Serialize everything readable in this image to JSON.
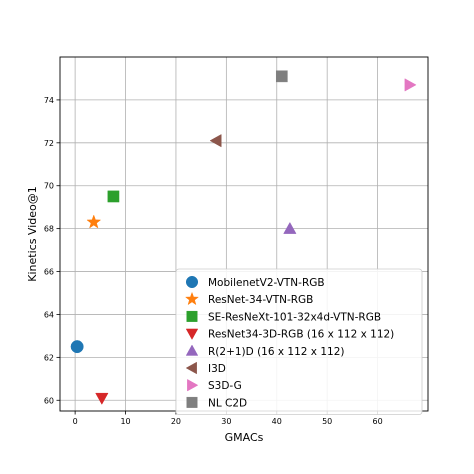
{
  "chart_data": {
    "type": "scatter",
    "xlabel": "GMACs",
    "ylabel": "Kinetics Video@1",
    "xlim": [
      -3,
      70
    ],
    "ylim": [
      59.5,
      76
    ],
    "xticks": [
      0,
      10,
      20,
      30,
      40,
      50,
      60
    ],
    "yticks": [
      60,
      62,
      64,
      66,
      68,
      70,
      72,
      74
    ],
    "grid": true,
    "legend_placement": "lower-right",
    "series": [
      {
        "name": "MobilenetV2-VTN-RGB",
        "marker": "circle",
        "color": "#1f77b4",
        "points": [
          {
            "x": 0.4,
            "y": 62.5
          }
        ]
      },
      {
        "name": "ResNet-34-VTN-RGB",
        "marker": "star",
        "color": "#ff7f0e",
        "points": [
          {
            "x": 3.7,
            "y": 68.3
          }
        ]
      },
      {
        "name": "SE-ResNeXt-101-32x4d-VTN-RGB",
        "marker": "square",
        "color": "#2ca02c",
        "points": [
          {
            "x": 7.6,
            "y": 69.5
          }
        ]
      },
      {
        "name": "ResNet34-3D-RGB (16 x 112 x 112)",
        "marker": "triangle-down",
        "color": "#d62728",
        "points": [
          {
            "x": 5.3,
            "y": 60.1
          }
        ]
      },
      {
        "name": "R(2+1)D (16 x 112 x 112)",
        "marker": "triangle-up",
        "color": "#9467bd",
        "points": [
          {
            "x": 42.6,
            "y": 68.0
          }
        ]
      },
      {
        "name": "I3D",
        "marker": "triangle-left",
        "color": "#8c564b",
        "points": [
          {
            "x": 28.0,
            "y": 72.1
          }
        ]
      },
      {
        "name": "S3D-G",
        "marker": "triangle-right",
        "color": "#e377c2",
        "points": [
          {
            "x": 66.4,
            "y": 74.7
          }
        ]
      },
      {
        "name": "NL C2D",
        "marker": "square",
        "color": "#7f7f7f",
        "points": [
          {
            "x": 41.0,
            "y": 75.1
          }
        ]
      }
    ]
  }
}
